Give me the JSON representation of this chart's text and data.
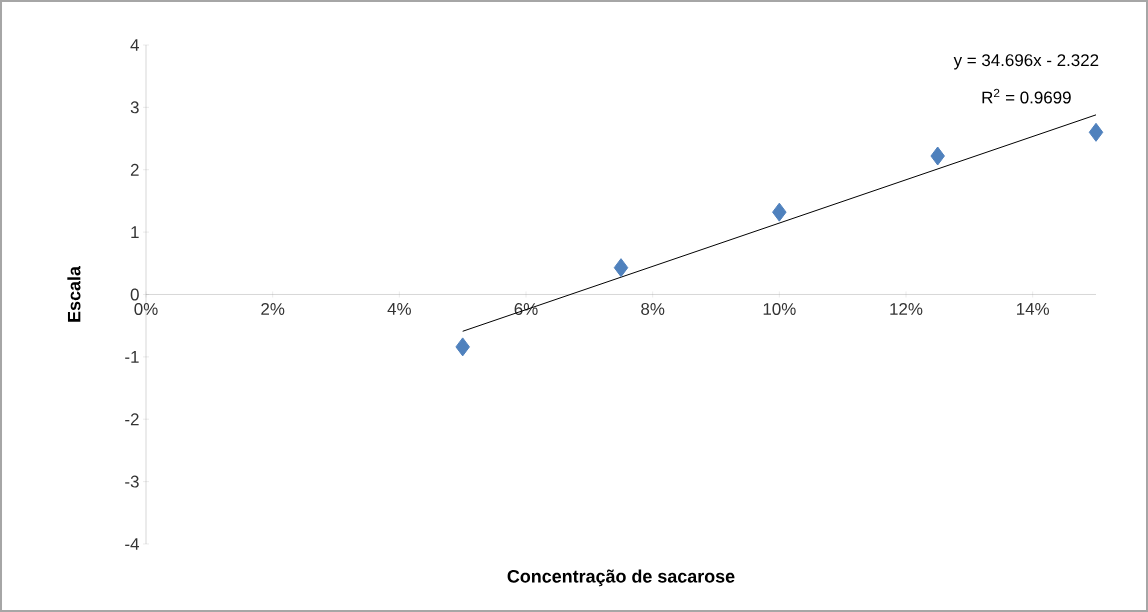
{
  "chart_data": {
    "type": "scatter",
    "xlabel": "Concentração de sacarose",
    "ylabel": "Escala",
    "x": [
      0.05,
      0.075,
      0.1,
      0.125,
      0.15
    ],
    "series": [
      {
        "color": "#4f81bd",
        "marker": "diamond",
        "values": [
          -0.84,
          0.43,
          1.32,
          2.22,
          2.6
        ]
      },
      {
        "type": "line",
        "color": "#000000",
        "marker": "none",
        "x": [
          0.05,
          0.15
        ],
        "values": [
          -0.59,
          2.88
        ]
      }
    ],
    "xlim": [
      0,
      0.15
    ],
    "ylim": [
      -4,
      4
    ],
    "xticks": [
      {
        "value": 0,
        "label": "0%"
      },
      {
        "value": 0.02,
        "label": "2%"
      },
      {
        "value": 0.04,
        "label": "4%"
      },
      {
        "value": 0.06,
        "label": "6%"
      },
      {
        "value": 0.08,
        "label": "8%"
      },
      {
        "value": 0.1,
        "label": "10%"
      },
      {
        "value": 0.12,
        "label": "12%"
      },
      {
        "value": 0.14,
        "label": "14%"
      }
    ],
    "yticks": [
      -4,
      -3,
      -2,
      -1,
      0,
      1,
      2,
      3,
      4
    ],
    "annotations": [
      "y = 34.696x - 2.322",
      "R$^{2}$ = 0.9699"
    ]
  }
}
